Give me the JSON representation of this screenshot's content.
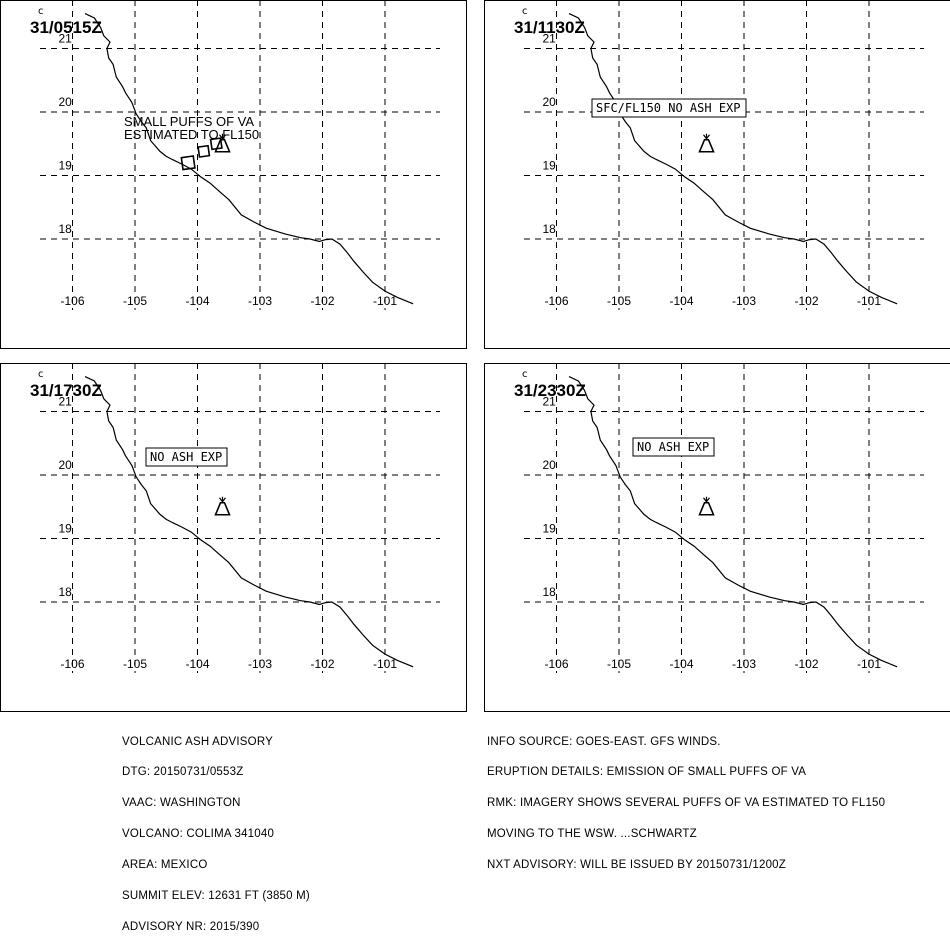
{
  "panels": [
    {
      "time_label": "31/0515Z",
      "annotation": "SMALL PUFFS OF VA\nESTIMATED TO FL150",
      "annotation_boxed": false,
      "ash_cloud": true
    },
    {
      "time_label": "31/1130Z",
      "annotation": "SFC/FL150 NO ASH EXP",
      "annotation_boxed": true,
      "ash_cloud": false
    },
    {
      "time_label": "31/1730Z",
      "annotation": "NO ASH EXP",
      "annotation_boxed": true,
      "ash_cloud": false
    },
    {
      "time_label": "31/2330Z",
      "annotation": "NO ASH EXP",
      "annotation_boxed": true,
      "ash_cloud": false
    }
  ],
  "map": {
    "lon_labels": [
      "-106",
      "-105",
      "-104",
      "-103",
      "-102",
      "-101"
    ],
    "lat_labels": [
      "21",
      "20",
      "19",
      "18"
    ],
    "lon_values": [
      -106,
      -105,
      -104,
      -103,
      -102,
      -101
    ],
    "lat_values": [
      21,
      20,
      19,
      18
    ],
    "volcano": {
      "name": "COLIMA",
      "lon": -103.6,
      "lat": 19.5
    },
    "line_color": "#000000"
  },
  "footer": {
    "left": [
      "VOLCANIC ASH ADVISORY",
      "DTG: 20150731/0553Z",
      "VAAC: WASHINGTON",
      "VOLCANO: COLIMA 341040",
      "AREA: MEXICO",
      "SUMMIT ELEV: 12631 FT (3850 M)",
      "ADVISORY NR: 2015/390"
    ],
    "right": [
      "INFO SOURCE: GOES-EAST. GFS WINDS.",
      "ERUPTION DETAILS: EMISSION OF SMALL PUFFS OF VA",
      "RMK: IMAGERY SHOWS SEVERAL PUFFS OF VA ESTIMATED TO FL150",
      "MOVING TO THE WSW. ...SCHWARTZ",
      "NXT ADVISORY: WILL BE ISSUED BY 20150731/1200Z"
    ]
  }
}
